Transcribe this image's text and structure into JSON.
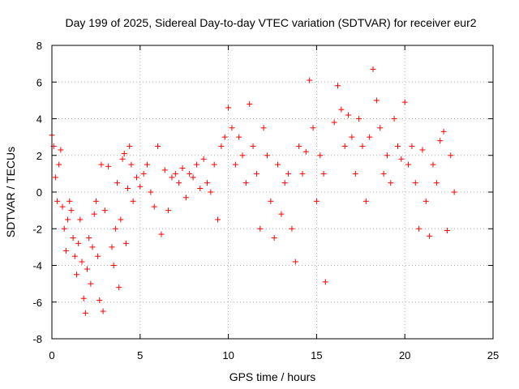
{
  "chart_data": {
    "type": "scatter",
    "title": "Day 199 of 2025, Sidereal Day-to-day VTEC variation (SDTVAR) for receiver eur2",
    "xlabel": "GPS time / hours",
    "ylabel": "SDTVAR / TECUs",
    "xlim": [
      0,
      25
    ],
    "ylim": [
      -8,
      8
    ],
    "xticks": [
      0,
      5,
      10,
      15,
      20,
      25
    ],
    "yticks": [
      -8,
      -6,
      -4,
      -2,
      0,
      2,
      4,
      6,
      8
    ],
    "xtick_labels": [
      "0",
      "5",
      "10",
      "15",
      "20",
      "25"
    ],
    "ytick_labels": [
      "-8",
      "-6",
      "-4",
      "-2",
      "0",
      "2",
      "4",
      "6",
      "8"
    ],
    "grid": true,
    "marker": "+",
    "series_color": "#ff0000",
    "series": [
      {
        "name": "SDTVAR",
        "x": [
          0.0,
          0.1,
          0.2,
          0.3,
          0.4,
          0.5,
          0.6,
          0.7,
          0.8,
          0.9,
          1.0,
          1.1,
          1.2,
          1.3,
          1.4,
          1.5,
          1.6,
          1.7,
          1.8,
          1.9,
          2.0,
          2.1,
          2.2,
          2.3,
          2.4,
          2.5,
          2.6,
          2.7,
          2.8,
          2.9,
          3.0,
          3.2,
          3.4,
          3.5,
          3.6,
          3.7,
          3.8,
          3.9,
          4.0,
          4.1,
          4.2,
          4.3,
          4.4,
          4.5,
          4.6,
          4.8,
          5.0,
          5.2,
          5.4,
          5.6,
          5.8,
          6.0,
          6.2,
          6.4,
          6.6,
          6.8,
          7.0,
          7.2,
          7.4,
          7.6,
          7.8,
          8.0,
          8.2,
          8.4,
          8.6,
          8.8,
          9.0,
          9.2,
          9.4,
          9.6,
          9.8,
          10.0,
          10.2,
          10.4,
          10.6,
          10.8,
          11.0,
          11.2,
          11.4,
          11.6,
          11.8,
          12.0,
          12.2,
          12.4,
          12.6,
          12.8,
          13.0,
          13.2,
          13.4,
          13.6,
          13.8,
          14.0,
          14.2,
          14.4,
          14.6,
          14.8,
          15.0,
          15.2,
          15.4,
          15.5,
          16.0,
          16.2,
          16.4,
          16.6,
          16.8,
          17.0,
          17.2,
          17.4,
          17.6,
          17.8,
          18.0,
          18.2,
          18.4,
          18.6,
          18.8,
          19.0,
          19.2,
          19.4,
          19.6,
          19.8,
          20.0,
          20.2,
          20.4,
          20.6,
          20.8,
          21.0,
          21.2,
          21.4,
          21.6,
          21.8,
          22.0,
          22.2,
          22.4,
          22.6,
          22.8
        ],
        "y": [
          3.1,
          2.5,
          0.8,
          -0.5,
          1.5,
          2.3,
          -0.8,
          -2.0,
          -3.2,
          -1.5,
          -0.5,
          -1.0,
          -2.5,
          -3.5,
          -4.5,
          -2.8,
          -1.5,
          -3.8,
          -5.8,
          -6.6,
          -4.2,
          -2.5,
          -5.0,
          -3.0,
          -1.2,
          -0.5,
          -3.5,
          -5.9,
          1.5,
          -6.5,
          -1.0,
          1.4,
          -3.0,
          -4.0,
          -2.0,
          0.5,
          -5.2,
          -1.5,
          1.8,
          2.1,
          -2.8,
          0.2,
          2.5,
          1.5,
          -0.5,
          0.8,
          0.3,
          1.0,
          1.5,
          0.0,
          -0.8,
          2.5,
          -2.3,
          1.2,
          -1.0,
          0.8,
          1.0,
          0.5,
          1.3,
          -0.3,
          1.0,
          0.8,
          1.5,
          0.2,
          1.8,
          0.5,
          0.0,
          1.5,
          -1.5,
          2.5,
          3.0,
          4.6,
          3.5,
          1.5,
          3.0,
          2.0,
          0.5,
          4.8,
          2.5,
          1.0,
          -2.0,
          3.5,
          2.0,
          -0.5,
          -2.5,
          1.5,
          -1.2,
          0.5,
          1.0,
          -2.0,
          -3.8,
          2.5,
          1.0,
          2.2,
          6.1,
          3.5,
          -0.5,
          2.0,
          1.0,
          -4.9,
          3.8,
          5.8,
          4.5,
          2.5,
          4.2,
          3.0,
          1.0,
          4.0,
          2.5,
          -0.5,
          3.0,
          6.7,
          5.0,
          3.5,
          1.0,
          2.0,
          0.5,
          4.0,
          2.5,
          1.8,
          4.9,
          1.5,
          2.5,
          0.5,
          -2.0,
          2.3,
          -0.5,
          -2.4,
          1.5,
          0.5,
          2.8,
          3.3,
          -2.1,
          2.0,
          0.0
        ]
      }
    ]
  }
}
